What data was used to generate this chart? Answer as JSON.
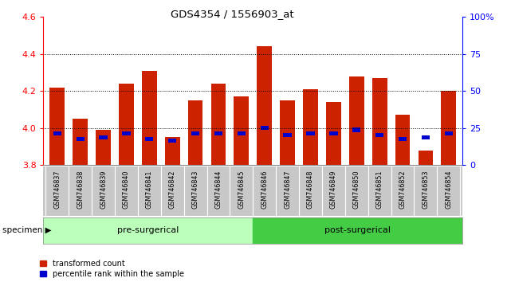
{
  "title": "GDS4354 / 1556903_at",
  "samples": [
    "GSM746837",
    "GSM746838",
    "GSM746839",
    "GSM746840",
    "GSM746841",
    "GSM746842",
    "GSM746843",
    "GSM746844",
    "GSM746845",
    "GSM746846",
    "GSM746847",
    "GSM746848",
    "GSM746849",
    "GSM746850",
    "GSM746851",
    "GSM746852",
    "GSM746853",
    "GSM746854"
  ],
  "red_values": [
    4.22,
    4.05,
    3.99,
    4.24,
    4.31,
    3.95,
    4.15,
    4.24,
    4.17,
    4.44,
    4.15,
    4.21,
    4.14,
    4.28,
    4.27,
    4.07,
    3.88,
    4.2
  ],
  "blue_values": [
    3.97,
    3.94,
    3.95,
    3.97,
    3.94,
    3.93,
    3.97,
    3.97,
    3.97,
    4.0,
    3.96,
    3.97,
    3.97,
    3.99,
    3.96,
    3.94,
    3.95,
    3.97
  ],
  "pre_surgical_count": 9,
  "post_surgical_count": 9,
  "ylim_left": [
    3.8,
    4.6
  ],
  "ylim_right": [
    0,
    100
  ],
  "yticks_left": [
    3.8,
    4.0,
    4.2,
    4.4,
    4.6
  ],
  "yticks_right": [
    0,
    25,
    50,
    75,
    100
  ],
  "ytick_labels_right": [
    "0",
    "25",
    "50",
    "75",
    "100%"
  ],
  "bar_color": "#CC2200",
  "blue_color": "#0000CC",
  "pre_surgical_color": "#BBFFBB",
  "post_surgical_color": "#44CC44",
  "tick_bg_color": "#C8C8C8",
  "legend_red_label": "transformed count",
  "legend_blue_label": "percentile rank within the sample",
  "specimen_label": "specimen",
  "pre_label": "pre-surgerical",
  "post_label": "post-surgerical",
  "gridline_yticks": [
    4.0,
    4.2,
    4.4
  ],
  "bar_width": 0.65
}
